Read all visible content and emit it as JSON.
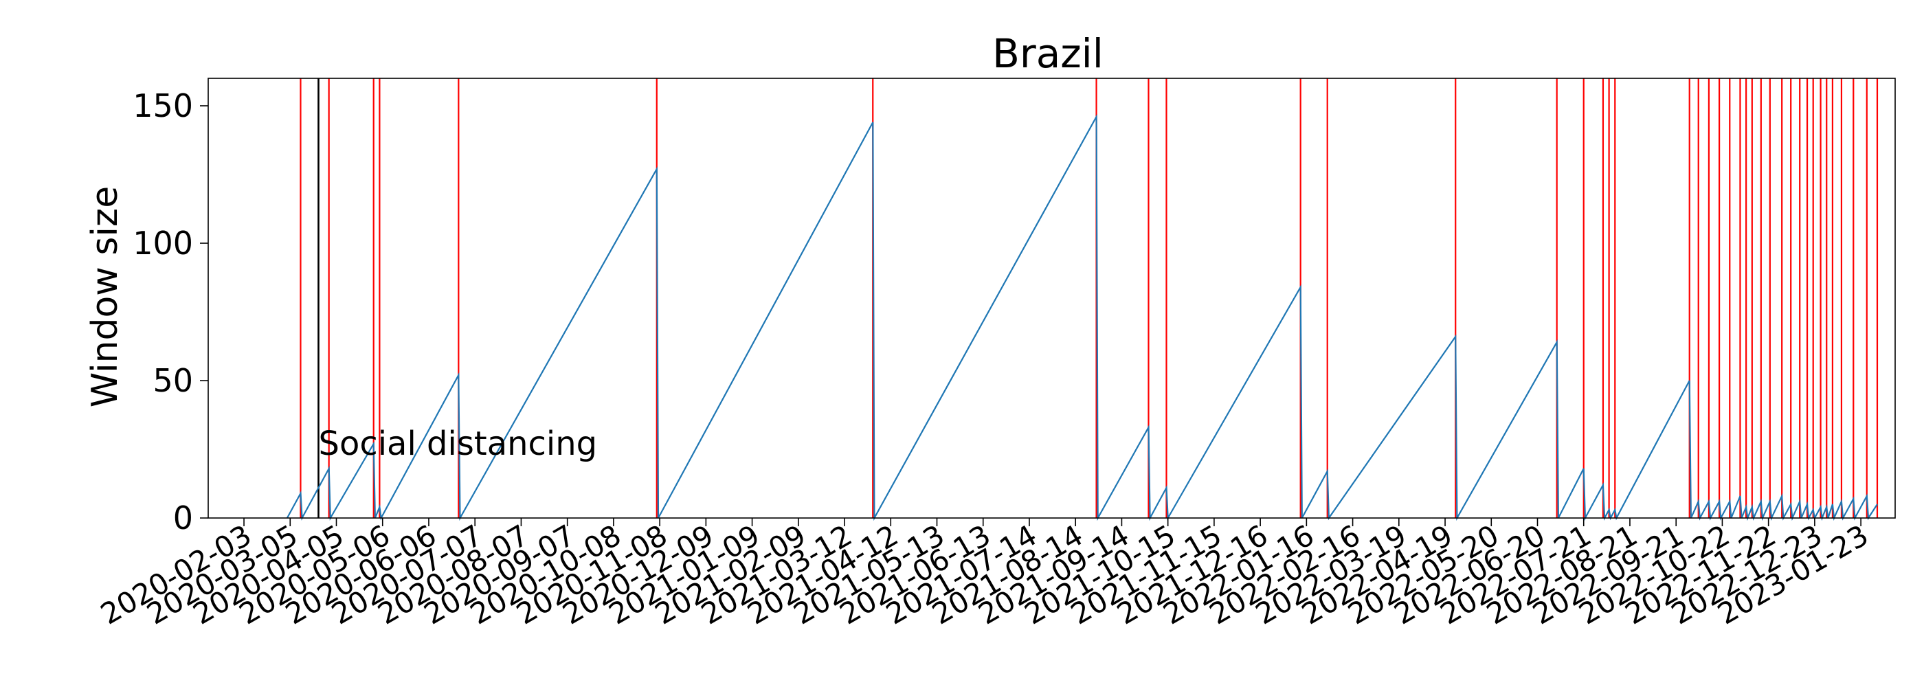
{
  "chart_data": {
    "type": "line",
    "title": "Brazil",
    "xlabel": "",
    "ylabel": "Window size",
    "ylim": [
      0,
      160
    ],
    "yticks": [
      0,
      50,
      100,
      150
    ],
    "xlim": [
      "2020-01-10",
      "2023-02-15"
    ],
    "grid": false,
    "xtick_labels": [
      "2020-02-03",
      "2020-03-05",
      "2020-04-05",
      "2020-05-06",
      "2020-06-06",
      "2020-07-07",
      "2020-08-07",
      "2020-09-07",
      "2020-10-08",
      "2020-11-08",
      "2020-12-09",
      "2021-01-09",
      "2021-02-09",
      "2021-03-12",
      "2021-04-12",
      "2021-05-13",
      "2021-06-13",
      "2021-07-14",
      "2021-08-14",
      "2021-09-14",
      "2021-10-15",
      "2021-11-15",
      "2021-12-16",
      "2022-01-16",
      "2022-02-16",
      "2022-03-19",
      "2022-04-19",
      "2022-05-20",
      "2022-06-20",
      "2022-07-21",
      "2022-08-21",
      "2022-09-21",
      "2022-10-22",
      "2022-11-22",
      "2022-12-23",
      "2023-01-23"
    ],
    "annotation": {
      "text": "Social distancing",
      "date": "2020-03-24"
    },
    "colors": {
      "series": "#1f77b4",
      "change_points": "#ff0000",
      "event": "#000000"
    },
    "event_line": "2020-03-24",
    "change_points": [
      "2020-03-12",
      "2020-03-31",
      "2020-04-30",
      "2020-05-04",
      "2020-06-26",
      "2020-11-06",
      "2021-03-31",
      "2021-08-28",
      "2021-10-02",
      "2021-10-14",
      "2022-01-12",
      "2022-01-30",
      "2022-04-26",
      "2022-07-03",
      "2022-07-21",
      "2022-08-03",
      "2022-08-07",
      "2022-08-11",
      "2022-09-30",
      "2022-10-06",
      "2022-10-13",
      "2022-10-20",
      "2022-10-27",
      "2022-11-03",
      "2022-11-07",
      "2022-11-11",
      "2022-11-17",
      "2022-11-23",
      "2022-12-01",
      "2022-12-07",
      "2022-12-13",
      "2022-12-18",
      "2022-12-22",
      "2022-12-27",
      "2022-12-31",
      "2023-01-04",
      "2023-01-10",
      "2023-01-18",
      "2023-01-27",
      "2023-02-03"
    ],
    "series": [
      {
        "points": [
          [
            "2020-03-03",
            0
          ],
          [
            "2020-03-12",
            9
          ],
          [
            "2020-03-13",
            0
          ],
          [
            "2020-03-31",
            18
          ],
          [
            "2020-04-01",
            0
          ],
          [
            "2020-04-30",
            27
          ],
          [
            "2020-05-01",
            0
          ],
          [
            "2020-05-04",
            4
          ],
          [
            "2020-05-05",
            0
          ],
          [
            "2020-06-26",
            52
          ],
          [
            "2020-06-27",
            0
          ],
          [
            "2020-11-06",
            127
          ],
          [
            "2020-11-07",
            0
          ],
          [
            "2021-03-31",
            144
          ],
          [
            "2021-04-01",
            0
          ],
          [
            "2021-08-28",
            146
          ],
          [
            "2021-08-29",
            0
          ],
          [
            "2021-10-02",
            33
          ],
          [
            "2021-10-03",
            0
          ],
          [
            "2021-10-14",
            11
          ],
          [
            "2021-10-15",
            0
          ],
          [
            "2022-01-12",
            84
          ],
          [
            "2022-01-13",
            0
          ],
          [
            "2022-01-30",
            17
          ],
          [
            "2022-01-31",
            0
          ],
          [
            "2022-04-26",
            66
          ],
          [
            "2022-04-27",
            0
          ],
          [
            "2022-07-03",
            64
          ],
          [
            "2022-07-04",
            0
          ],
          [
            "2022-07-21",
            18
          ],
          [
            "2022-07-22",
            0
          ],
          [
            "2022-08-03",
            12
          ],
          [
            "2022-08-04",
            0
          ],
          [
            "2022-08-07",
            3
          ],
          [
            "2022-08-08",
            0
          ],
          [
            "2022-08-11",
            3
          ],
          [
            "2022-08-12",
            0
          ],
          [
            "2022-09-30",
            50
          ],
          [
            "2022-10-01",
            0
          ],
          [
            "2022-10-06",
            6
          ],
          [
            "2022-10-07",
            0
          ],
          [
            "2022-10-13",
            6
          ],
          [
            "2022-10-14",
            0
          ],
          [
            "2022-10-20",
            6
          ],
          [
            "2022-10-21",
            0
          ],
          [
            "2022-10-27",
            6
          ],
          [
            "2022-10-28",
            0
          ],
          [
            "2022-11-03",
            8
          ],
          [
            "2022-11-04",
            0
          ],
          [
            "2022-11-07",
            4
          ],
          [
            "2022-11-08",
            0
          ],
          [
            "2022-11-11",
            4
          ],
          [
            "2022-11-12",
            0
          ],
          [
            "2022-11-17",
            6
          ],
          [
            "2022-11-18",
            0
          ],
          [
            "2022-11-23",
            6
          ],
          [
            "2022-11-24",
            0
          ],
          [
            "2022-12-01",
            8
          ],
          [
            "2022-12-02",
            0
          ],
          [
            "2022-12-07",
            5
          ],
          [
            "2022-12-08",
            0
          ],
          [
            "2022-12-13",
            6
          ],
          [
            "2022-12-14",
            0
          ],
          [
            "2022-12-18",
            5
          ],
          [
            "2022-12-19",
            0
          ],
          [
            "2022-12-22",
            3
          ],
          [
            "2022-12-23",
            0
          ],
          [
            "2022-12-27",
            4
          ],
          [
            "2022-12-28",
            0
          ],
          [
            "2022-12-31",
            4
          ],
          [
            "2023-01-01",
            0
          ],
          [
            "2023-01-04",
            5
          ],
          [
            "2023-01-05",
            0
          ],
          [
            "2023-01-10",
            6
          ],
          [
            "2023-01-11",
            0
          ],
          [
            "2023-01-18",
            7
          ],
          [
            "2023-01-19",
            0
          ],
          [
            "2023-01-27",
            8
          ],
          [
            "2023-01-28",
            0
          ],
          [
            "2023-02-03",
            5
          ]
        ]
      }
    ]
  }
}
